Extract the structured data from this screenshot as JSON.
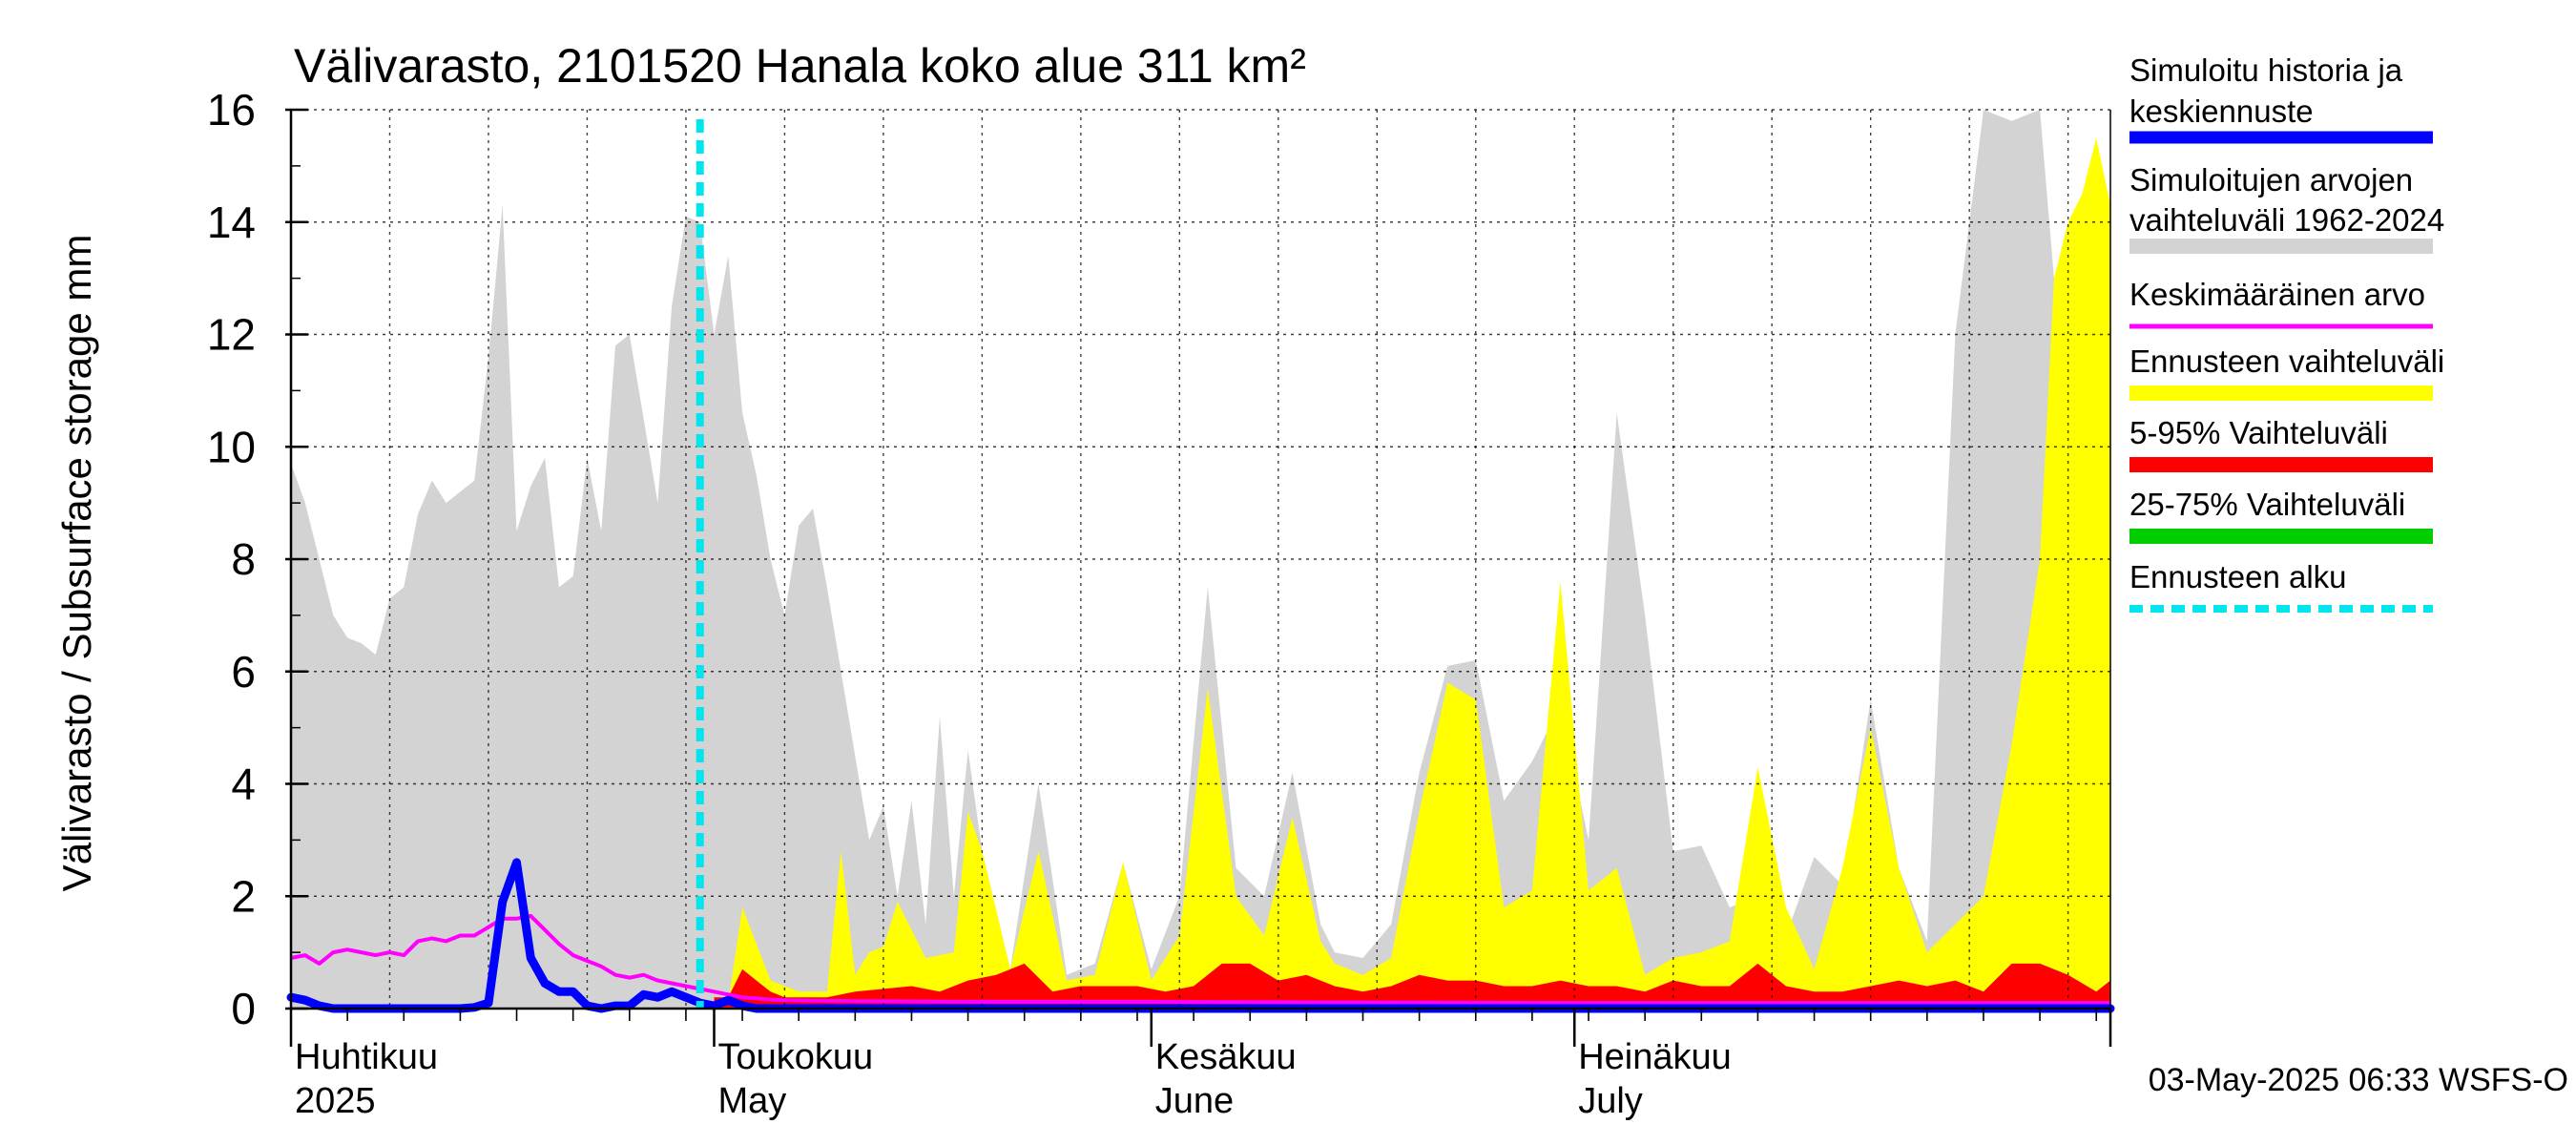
{
  "chart_data": {
    "type": "area",
    "title": "Välivarasto, 2101520 Hanala koko alue 311 km²",
    "ylabel": "Välivarasto / Subsurface storage  mm",
    "ylim": [
      0,
      16
    ],
    "yticks": [
      0,
      2,
      4,
      6,
      8,
      10,
      12,
      14,
      16
    ],
    "x_start": "2025-04-01",
    "x_end": "2025-08-08",
    "grid": true,
    "legend_position": "right",
    "footer": "03-May-2025 06:33 WSFS-O",
    "forecast_start": "2025-04-30",
    "month_labels": [
      {
        "date": "2025-04-01",
        "fi": "Huhtikuu",
        "en": "2025"
      },
      {
        "date": "2025-05-01",
        "fi": "Toukokuu",
        "en": "May"
      },
      {
        "date": "2025-06-01",
        "fi": "Kesäkuu",
        "en": "June"
      },
      {
        "date": "2025-07-01",
        "fi": "Heinäkuu",
        "en": "July"
      }
    ],
    "legend": [
      {
        "line1": "Simuloitu historia ja",
        "line2": "keskiennuste",
        "color": "#0000ff",
        "style": "solid"
      },
      {
        "line1": "Simuloitujen arvojen",
        "line2": "vaihteluväli 1962-2024",
        "color": "#d3d3d3",
        "style": "band"
      },
      {
        "line1": "Keskimääräinen arvo",
        "line2": "",
        "color": "#ff00ff",
        "style": "thin"
      },
      {
        "line1": "Ennusteen vaihteluväli",
        "line2": "",
        "color": "#ffff00",
        "style": "band"
      },
      {
        "line1": "5-95% Vaihteluväli",
        "line2": "",
        "color": "#ff0000",
        "style": "band"
      },
      {
        "line1": "25-75% Vaihteluväli",
        "line2": "",
        "color": "#00cc00",
        "style": "band"
      },
      {
        "line1": "Ennusteen alku",
        "line2": "",
        "color": "#00e5ee",
        "style": "dashed"
      }
    ],
    "series": [
      {
        "name": "Simuloitujen arvojen vaihteluväli 1962-2024",
        "x": [
          "2025-04-01",
          "2025-04-02",
          "2025-04-03",
          "2025-04-04",
          "2025-04-05",
          "2025-04-06",
          "2025-04-07",
          "2025-04-08",
          "2025-04-09",
          "2025-04-10",
          "2025-04-11",
          "2025-04-12",
          "2025-04-13",
          "2025-04-14",
          "2025-04-15",
          "2025-04-16",
          "2025-04-17",
          "2025-04-18",
          "2025-04-19",
          "2025-04-20",
          "2025-04-21",
          "2025-04-22",
          "2025-04-23",
          "2025-04-24",
          "2025-04-25",
          "2025-04-26",
          "2025-04-27",
          "2025-04-28",
          "2025-04-29",
          "2025-04-30",
          "2025-05-01",
          "2025-05-02",
          "2025-05-03",
          "2025-05-04",
          "2025-05-05",
          "2025-05-06",
          "2025-05-07",
          "2025-05-08",
          "2025-05-09",
          "2025-05-10",
          "2025-05-11",
          "2025-05-12",
          "2025-05-13",
          "2025-05-14",
          "2025-05-15",
          "2025-05-16",
          "2025-05-17",
          "2025-05-18",
          "2025-05-19",
          "2025-05-20",
          "2025-05-22",
          "2025-05-24",
          "2025-05-26",
          "2025-05-28",
          "2025-05-30",
          "2025-06-01",
          "2025-06-03",
          "2025-06-05",
          "2025-06-07",
          "2025-06-09",
          "2025-06-11",
          "2025-06-13",
          "2025-06-14",
          "2025-06-16",
          "2025-06-18",
          "2025-06-20",
          "2025-06-22",
          "2025-06-24",
          "2025-06-26",
          "2025-06-28",
          "2025-06-30",
          "2025-07-02",
          "2025-07-04",
          "2025-07-06",
          "2025-07-08",
          "2025-07-10",
          "2025-07-12",
          "2025-07-14",
          "2025-07-16",
          "2025-07-18",
          "2025-07-20",
          "2025-07-22",
          "2025-07-24",
          "2025-07-26",
          "2025-07-28",
          "2025-07-30",
          "2025-08-01",
          "2025-08-03",
          "2025-08-04",
          "2025-08-05",
          "2025-08-06",
          "2025-08-07",
          "2025-08-08"
        ],
        "upper": [
          9.7,
          9.0,
          8.0,
          7.0,
          6.6,
          6.5,
          6.3,
          7.3,
          7.5,
          8.8,
          9.4,
          9.0,
          9.2,
          9.4,
          11.6,
          14.3,
          8.5,
          9.3,
          9.8,
          7.5,
          7.7,
          9.8,
          8.5,
          11.8,
          12.0,
          10.5,
          9.0,
          12.5,
          14.1,
          14.0,
          12.0,
          13.4,
          10.6,
          9.5,
          8.0,
          7.0,
          8.6,
          8.9,
          7.5,
          6.0,
          4.5,
          3.0,
          3.6,
          2.0,
          3.7,
          1.5,
          5.2,
          2.0,
          4.6,
          2.8,
          0.7,
          4.0,
          0.6,
          0.8,
          2.6,
          0.7,
          2.0,
          7.5,
          2.5,
          2.0,
          4.2,
          1.5,
          1.0,
          0.9,
          1.5,
          4.2,
          6.1,
          6.2,
          3.7,
          4.4,
          5.4,
          3.0,
          10.6,
          7.0,
          2.8,
          2.9,
          1.8,
          2.0,
          1.3,
          2.7,
          2.2,
          5.5,
          2.5,
          1.2,
          12.0,
          16.0,
          15.8,
          16.0,
          13.0,
          13.0,
          13.0,
          13.0,
          13.0
        ],
        "color": "#d3d3d3"
      },
      {
        "name": "Ennusteen vaihteluväli",
        "x": [
          "2025-05-02",
          "2025-05-03",
          "2025-05-05",
          "2025-05-07",
          "2025-05-09",
          "2025-05-10",
          "2025-05-11",
          "2025-05-12",
          "2025-05-13",
          "2025-05-14",
          "2025-05-16",
          "2025-05-18",
          "2025-05-19",
          "2025-05-20",
          "2025-05-22",
          "2025-05-24",
          "2025-05-26",
          "2025-05-28",
          "2025-05-30",
          "2025-06-01",
          "2025-06-03",
          "2025-06-05",
          "2025-06-07",
          "2025-06-09",
          "2025-06-11",
          "2025-06-13",
          "2025-06-14",
          "2025-06-16",
          "2025-06-18",
          "2025-06-20",
          "2025-06-22",
          "2025-06-24",
          "2025-06-26",
          "2025-06-28",
          "2025-06-30",
          "2025-07-02",
          "2025-07-04",
          "2025-07-06",
          "2025-07-08",
          "2025-07-10",
          "2025-07-12",
          "2025-07-14",
          "2025-07-16",
          "2025-07-18",
          "2025-07-20",
          "2025-07-22",
          "2025-07-24",
          "2025-07-26",
          "2025-07-28",
          "2025-07-30",
          "2025-08-01",
          "2025-08-03",
          "2025-08-04",
          "2025-08-05",
          "2025-08-06",
          "2025-08-07",
          "2025-08-08"
        ],
        "upper": [
          0.1,
          1.8,
          0.5,
          0.3,
          0.3,
          2.8,
          0.6,
          1.0,
          1.1,
          1.9,
          0.9,
          1.0,
          3.5,
          2.8,
          0.7,
          2.8,
          0.5,
          0.6,
          2.6,
          0.5,
          1.3,
          5.7,
          2.0,
          1.3,
          3.4,
          1.2,
          0.8,
          0.6,
          0.9,
          3.5,
          5.8,
          5.5,
          1.8,
          2.1,
          7.6,
          2.1,
          2.5,
          0.6,
          0.9,
          1.0,
          1.2,
          4.3,
          1.8,
          0.7,
          2.5,
          5.0,
          2.5,
          1.0,
          1.5,
          2.0,
          4.7,
          8.0,
          13.0,
          14.0,
          14.5,
          15.5,
          14.3
        ],
        "color": "#ffff00"
      },
      {
        "name": "5-95% Vaihteluväli",
        "x": [
          "2025-05-01",
          "2025-05-02",
          "2025-05-03",
          "2025-05-04",
          "2025-05-05",
          "2025-05-06",
          "2025-05-07",
          "2025-05-09",
          "2025-05-11",
          "2025-05-13",
          "2025-05-15",
          "2025-05-17",
          "2025-05-19",
          "2025-05-21",
          "2025-05-23",
          "2025-05-25",
          "2025-05-27",
          "2025-05-29",
          "2025-05-31",
          "2025-06-02",
          "2025-06-04",
          "2025-06-06",
          "2025-06-08",
          "2025-06-10",
          "2025-06-12",
          "2025-06-14",
          "2025-06-16",
          "2025-06-18",
          "2025-06-20",
          "2025-06-22",
          "2025-06-24",
          "2025-06-26",
          "2025-06-28",
          "2025-06-30",
          "2025-07-02",
          "2025-07-04",
          "2025-07-06",
          "2025-07-08",
          "2025-07-10",
          "2025-07-12",
          "2025-07-14",
          "2025-07-16",
          "2025-07-18",
          "2025-07-20",
          "2025-07-22",
          "2025-07-24",
          "2025-07-26",
          "2025-07-28",
          "2025-07-30",
          "2025-08-01",
          "2025-08-03",
          "2025-08-05",
          "2025-08-07",
          "2025-08-08"
        ],
        "lower": [
          0.02,
          0.02,
          0.02,
          0.02,
          0.02,
          0.02,
          0.02,
          0.02,
          0.02,
          0.02,
          0.02,
          0.02,
          0.02,
          0.02,
          0.02,
          0.02,
          0.02,
          0.02,
          0.02,
          0.02,
          0.02,
          0.02,
          0.02,
          0.02,
          0.02,
          0.02,
          0.02,
          0.02,
          0.02,
          0.02,
          0.02,
          0.02,
          0.02,
          0.02,
          0.02,
          0.02,
          0.02,
          0.02,
          0.02,
          0.02,
          0.02,
          0.02,
          0.02,
          0.02,
          0.02,
          0.02,
          0.02,
          0.02,
          0.02,
          0.02,
          0.02,
          0.02,
          0.02,
          0.02
        ],
        "upper": [
          0.2,
          0.2,
          0.7,
          0.5,
          0.3,
          0.2,
          0.2,
          0.2,
          0.3,
          0.35,
          0.4,
          0.3,
          0.5,
          0.6,
          0.8,
          0.3,
          0.4,
          0.4,
          0.4,
          0.3,
          0.4,
          0.8,
          0.8,
          0.5,
          0.6,
          0.4,
          0.3,
          0.4,
          0.6,
          0.5,
          0.5,
          0.4,
          0.4,
          0.5,
          0.4,
          0.4,
          0.3,
          0.5,
          0.4,
          0.4,
          0.8,
          0.4,
          0.3,
          0.3,
          0.4,
          0.5,
          0.4,
          0.5,
          0.3,
          0.8,
          0.8,
          0.6,
          0.3,
          0.5
        ],
        "color": "#ff0000"
      },
      {
        "name": "Keskimääräinen arvo",
        "x": [
          "2025-04-01",
          "2025-04-02",
          "2025-04-03",
          "2025-04-04",
          "2025-04-05",
          "2025-04-06",
          "2025-04-07",
          "2025-04-08",
          "2025-04-09",
          "2025-04-10",
          "2025-04-11",
          "2025-04-12",
          "2025-04-13",
          "2025-04-14",
          "2025-04-15",
          "2025-04-16",
          "2025-04-17",
          "2025-04-18",
          "2025-04-19",
          "2025-04-20",
          "2025-04-21",
          "2025-04-22",
          "2025-04-23",
          "2025-04-24",
          "2025-04-25",
          "2025-04-26",
          "2025-04-27",
          "2025-04-28",
          "2025-04-29",
          "2025-04-30",
          "2025-05-01",
          "2025-05-02",
          "2025-05-03",
          "2025-05-04",
          "2025-05-05",
          "2025-05-06",
          "2025-05-08",
          "2025-05-12",
          "2025-05-20",
          "2025-06-01",
          "2025-06-15",
          "2025-07-01",
          "2025-07-15",
          "2025-08-08"
        ],
        "values": [
          0.9,
          0.95,
          0.8,
          1.0,
          1.05,
          1.0,
          0.95,
          1.0,
          0.95,
          1.2,
          1.25,
          1.2,
          1.3,
          1.3,
          1.45,
          1.6,
          1.6,
          1.65,
          1.4,
          1.15,
          0.95,
          0.85,
          0.75,
          0.6,
          0.55,
          0.6,
          0.5,
          0.45,
          0.4,
          0.35,
          0.3,
          0.25,
          0.2,
          0.18,
          0.16,
          0.15,
          0.14,
          0.13,
          0.12,
          0.12,
          0.11,
          0.1,
          0.1,
          0.1
        ],
        "color": "#ff00ff"
      },
      {
        "name": "Simuloitu historia ja keskiennuste",
        "x": [
          "2025-04-01",
          "2025-04-02",
          "2025-04-03",
          "2025-04-04",
          "2025-04-05",
          "2025-04-07",
          "2025-04-10",
          "2025-04-13",
          "2025-04-14",
          "2025-04-15",
          "2025-04-16",
          "2025-04-17",
          "2025-04-18",
          "2025-04-19",
          "2025-04-20",
          "2025-04-21",
          "2025-04-22",
          "2025-04-23",
          "2025-04-24",
          "2025-04-25",
          "2025-04-26",
          "2025-04-27",
          "2025-04-28",
          "2025-04-29",
          "2025-04-30",
          "2025-05-01",
          "2025-05-02",
          "2025-05-03",
          "2025-05-04",
          "2025-05-06",
          "2025-05-10",
          "2025-05-20",
          "2025-06-01",
          "2025-06-15",
          "2025-07-01",
          "2025-07-15",
          "2025-08-08"
        ],
        "values": [
          0.2,
          0.15,
          0.05,
          0.0,
          0.0,
          0.0,
          0.0,
          0.0,
          0.02,
          0.1,
          1.9,
          2.6,
          0.9,
          0.45,
          0.3,
          0.3,
          0.05,
          0.0,
          0.05,
          0.05,
          0.25,
          0.2,
          0.3,
          0.2,
          0.1,
          0.05,
          0.15,
          0.05,
          0.0,
          0.0,
          0.0,
          0.0,
          0.0,
          0.0,
          0.0,
          0.0,
          0.0
        ],
        "color": "#0000ff"
      }
    ]
  }
}
